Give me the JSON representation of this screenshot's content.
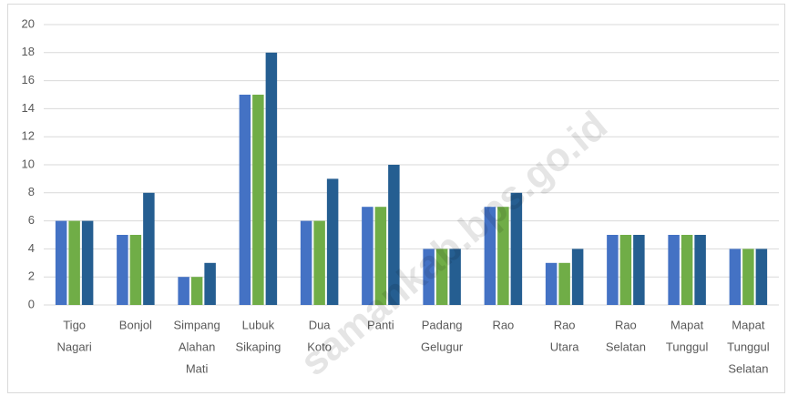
{
  "chart_data": {
    "type": "bar",
    "categories": [
      [
        "Tigo",
        "Nagari"
      ],
      [
        "Bonjol"
      ],
      [
        "Simpang",
        "Alahan",
        "Mati"
      ],
      [
        "Lubuk",
        "Sikaping"
      ],
      [
        "Dua",
        "Koto"
      ],
      [
        "Panti"
      ],
      [
        "Padang",
        "Gelugur"
      ],
      [
        "Rao"
      ],
      [
        "Rao",
        "Utara"
      ],
      [
        "Rao",
        "Selatan"
      ],
      [
        "Mapat",
        "Tunggul"
      ],
      [
        "Mapat",
        "Tunggul",
        "Selatan"
      ]
    ],
    "series": [
      {
        "color": "#4472c4",
        "values": [
          6,
          5,
          2,
          15,
          6,
          7,
          4,
          7,
          3,
          5,
          5,
          4
        ]
      },
      {
        "color": "#70ad47",
        "values": [
          6,
          5,
          2,
          15,
          6,
          7,
          4,
          7,
          3,
          5,
          5,
          4
        ]
      },
      {
        "color": "#255e91",
        "values": [
          6,
          8,
          3,
          18,
          9,
          10,
          4,
          8,
          4,
          5,
          5,
          4
        ]
      }
    ],
    "ylim": [
      0,
      20
    ],
    "yticks": [
      0,
      2,
      4,
      6,
      8,
      10,
      12,
      14,
      16,
      18,
      20
    ],
    "grid": true,
    "watermark": "samankab.bps.go.id"
  }
}
